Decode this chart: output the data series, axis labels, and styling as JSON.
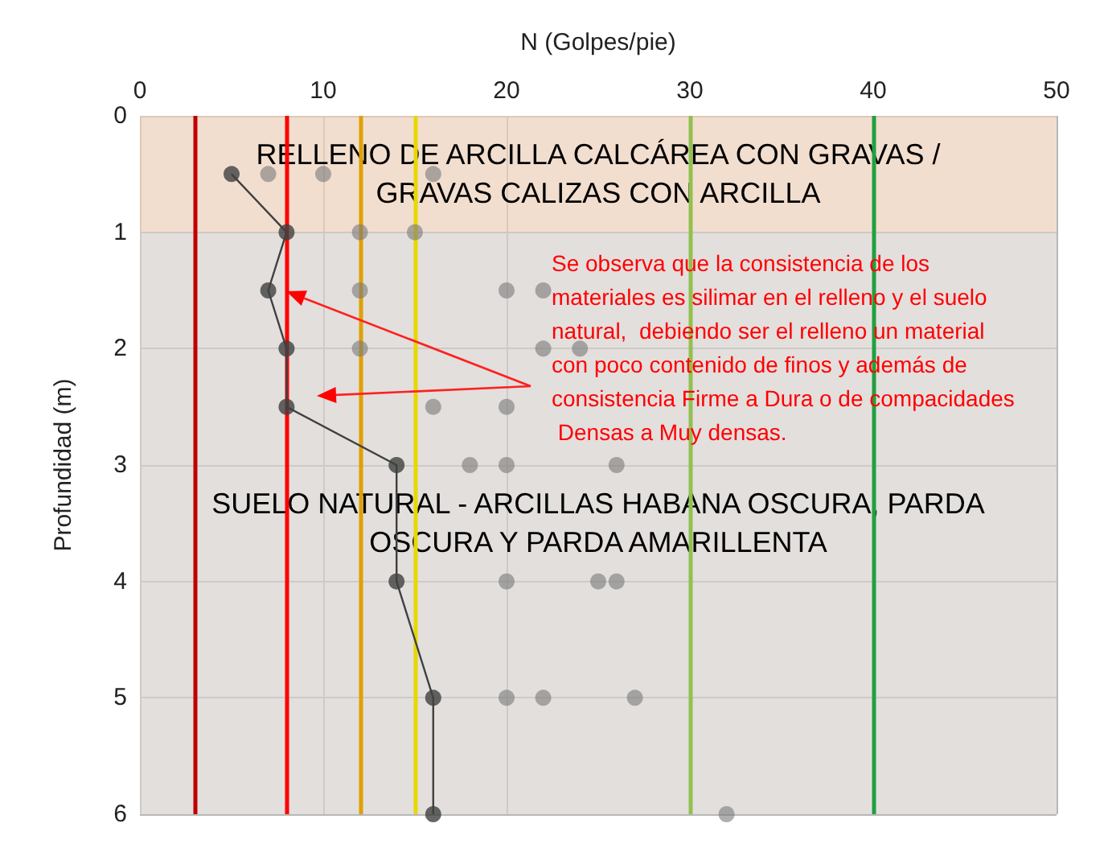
{
  "chart_data": {
    "type": "line",
    "xlabel": "N (Golpes/pie)",
    "ylabel": "Profundidad (m)",
    "xlim": [
      0,
      50
    ],
    "xticks": [
      0,
      10,
      20,
      30,
      40,
      50
    ],
    "ylim": [
      6,
      0
    ],
    "yticks": [
      0,
      1,
      2,
      3,
      4,
      5,
      6
    ],
    "grid": true,
    "marker": "circle",
    "series": [
      {
        "color": "#404040",
        "x": [
          5,
          8,
          7,
          8,
          8,
          14,
          14,
          16,
          16
        ],
        "values": [
          0.5,
          1,
          1.5,
          2,
          2.5,
          3,
          4,
          5,
          6
        ]
      },
      {
        "type": "scatter",
        "color": "#7a7a7a",
        "x": [
          7,
          10,
          16,
          12,
          15,
          12,
          20,
          22,
          12,
          22,
          24,
          16,
          20,
          18,
          20,
          26,
          20,
          25,
          26,
          20,
          22,
          27,
          32
        ],
        "values": [
          0.5,
          0.5,
          0.5,
          1,
          1,
          1.5,
          1.5,
          1.5,
          2,
          2,
          2,
          2.5,
          2.5,
          3,
          3,
          3,
          4,
          4,
          4,
          5,
          5,
          5,
          6
        ]
      }
    ],
    "ref_lines": [
      {
        "axis": "x",
        "value": 3,
        "color": "#c00000"
      },
      {
        "axis": "x",
        "value": 8,
        "color": "#ff0000"
      },
      {
        "axis": "x",
        "value": 12,
        "color": "#e0a000"
      },
      {
        "axis": "x",
        "value": 15,
        "color": "#e8d800"
      },
      {
        "axis": "x",
        "value": 30,
        "color": "#92c050"
      },
      {
        "axis": "x",
        "value": 40,
        "color": "#22a040"
      }
    ],
    "bands": [
      {
        "axis": "y",
        "from": 0,
        "to": 1,
        "label": "RELLENO DE ARCILLA CALCÁREA CON GRAVAS /\nGRAVAS CALIZAS CON ARCILLA",
        "color": "#ecd0bb"
      },
      {
        "axis": "y",
        "from": 1,
        "to": 6,
        "label": "SUELO NATURAL - ARCILLAS HABANA OSCURA, PARDA\nOSCURA Y PARDA AMARILLENTA",
        "color": "#d6d2ce"
      }
    ],
    "annotations": [
      "Se observa que la consistencia de los materiales es silimar en el relleno y el suelo natural,  debiendo ser el relleno un material con poco contenido de finos y además de consistencia Firme a Dura o de compacidades Densas a Muy densas."
    ]
  }
}
